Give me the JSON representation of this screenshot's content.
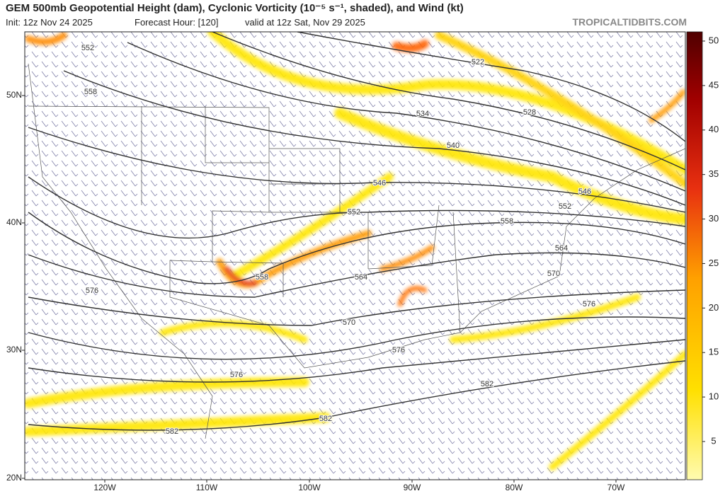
{
  "header": {
    "title": "GEM 500mb Geopotential Height (dam), Cyclonic Vorticity (10⁻⁵ s⁻¹, shaded), and Wind (kt)",
    "init": "Init: 12z Nov 24 2025",
    "forecast_hour": "Forecast Hour: [120]",
    "valid": "valid at 12z Sat, Nov 29 2025",
    "site": "TROPICALTIDBITS.COM"
  },
  "map": {
    "latitude_labels": [
      "50N",
      "40N",
      "30N",
      "20N"
    ],
    "longitude_labels": [
      "120W",
      "110W",
      "100W",
      "90W",
      "80W",
      "70W"
    ],
    "contour_labels": [
      "552",
      "558",
      "522",
      "534",
      "528",
      "540",
      "546",
      "546",
      "552",
      "552",
      "558",
      "564",
      "558",
      "564",
      "570",
      "576",
      "570",
      "576",
      "576",
      "582",
      "582",
      "582",
      "576"
    ]
  },
  "colorbar": {
    "ticks": [
      5,
      10,
      15,
      20,
      25,
      30,
      35,
      40,
      45,
      50
    ]
  }
}
